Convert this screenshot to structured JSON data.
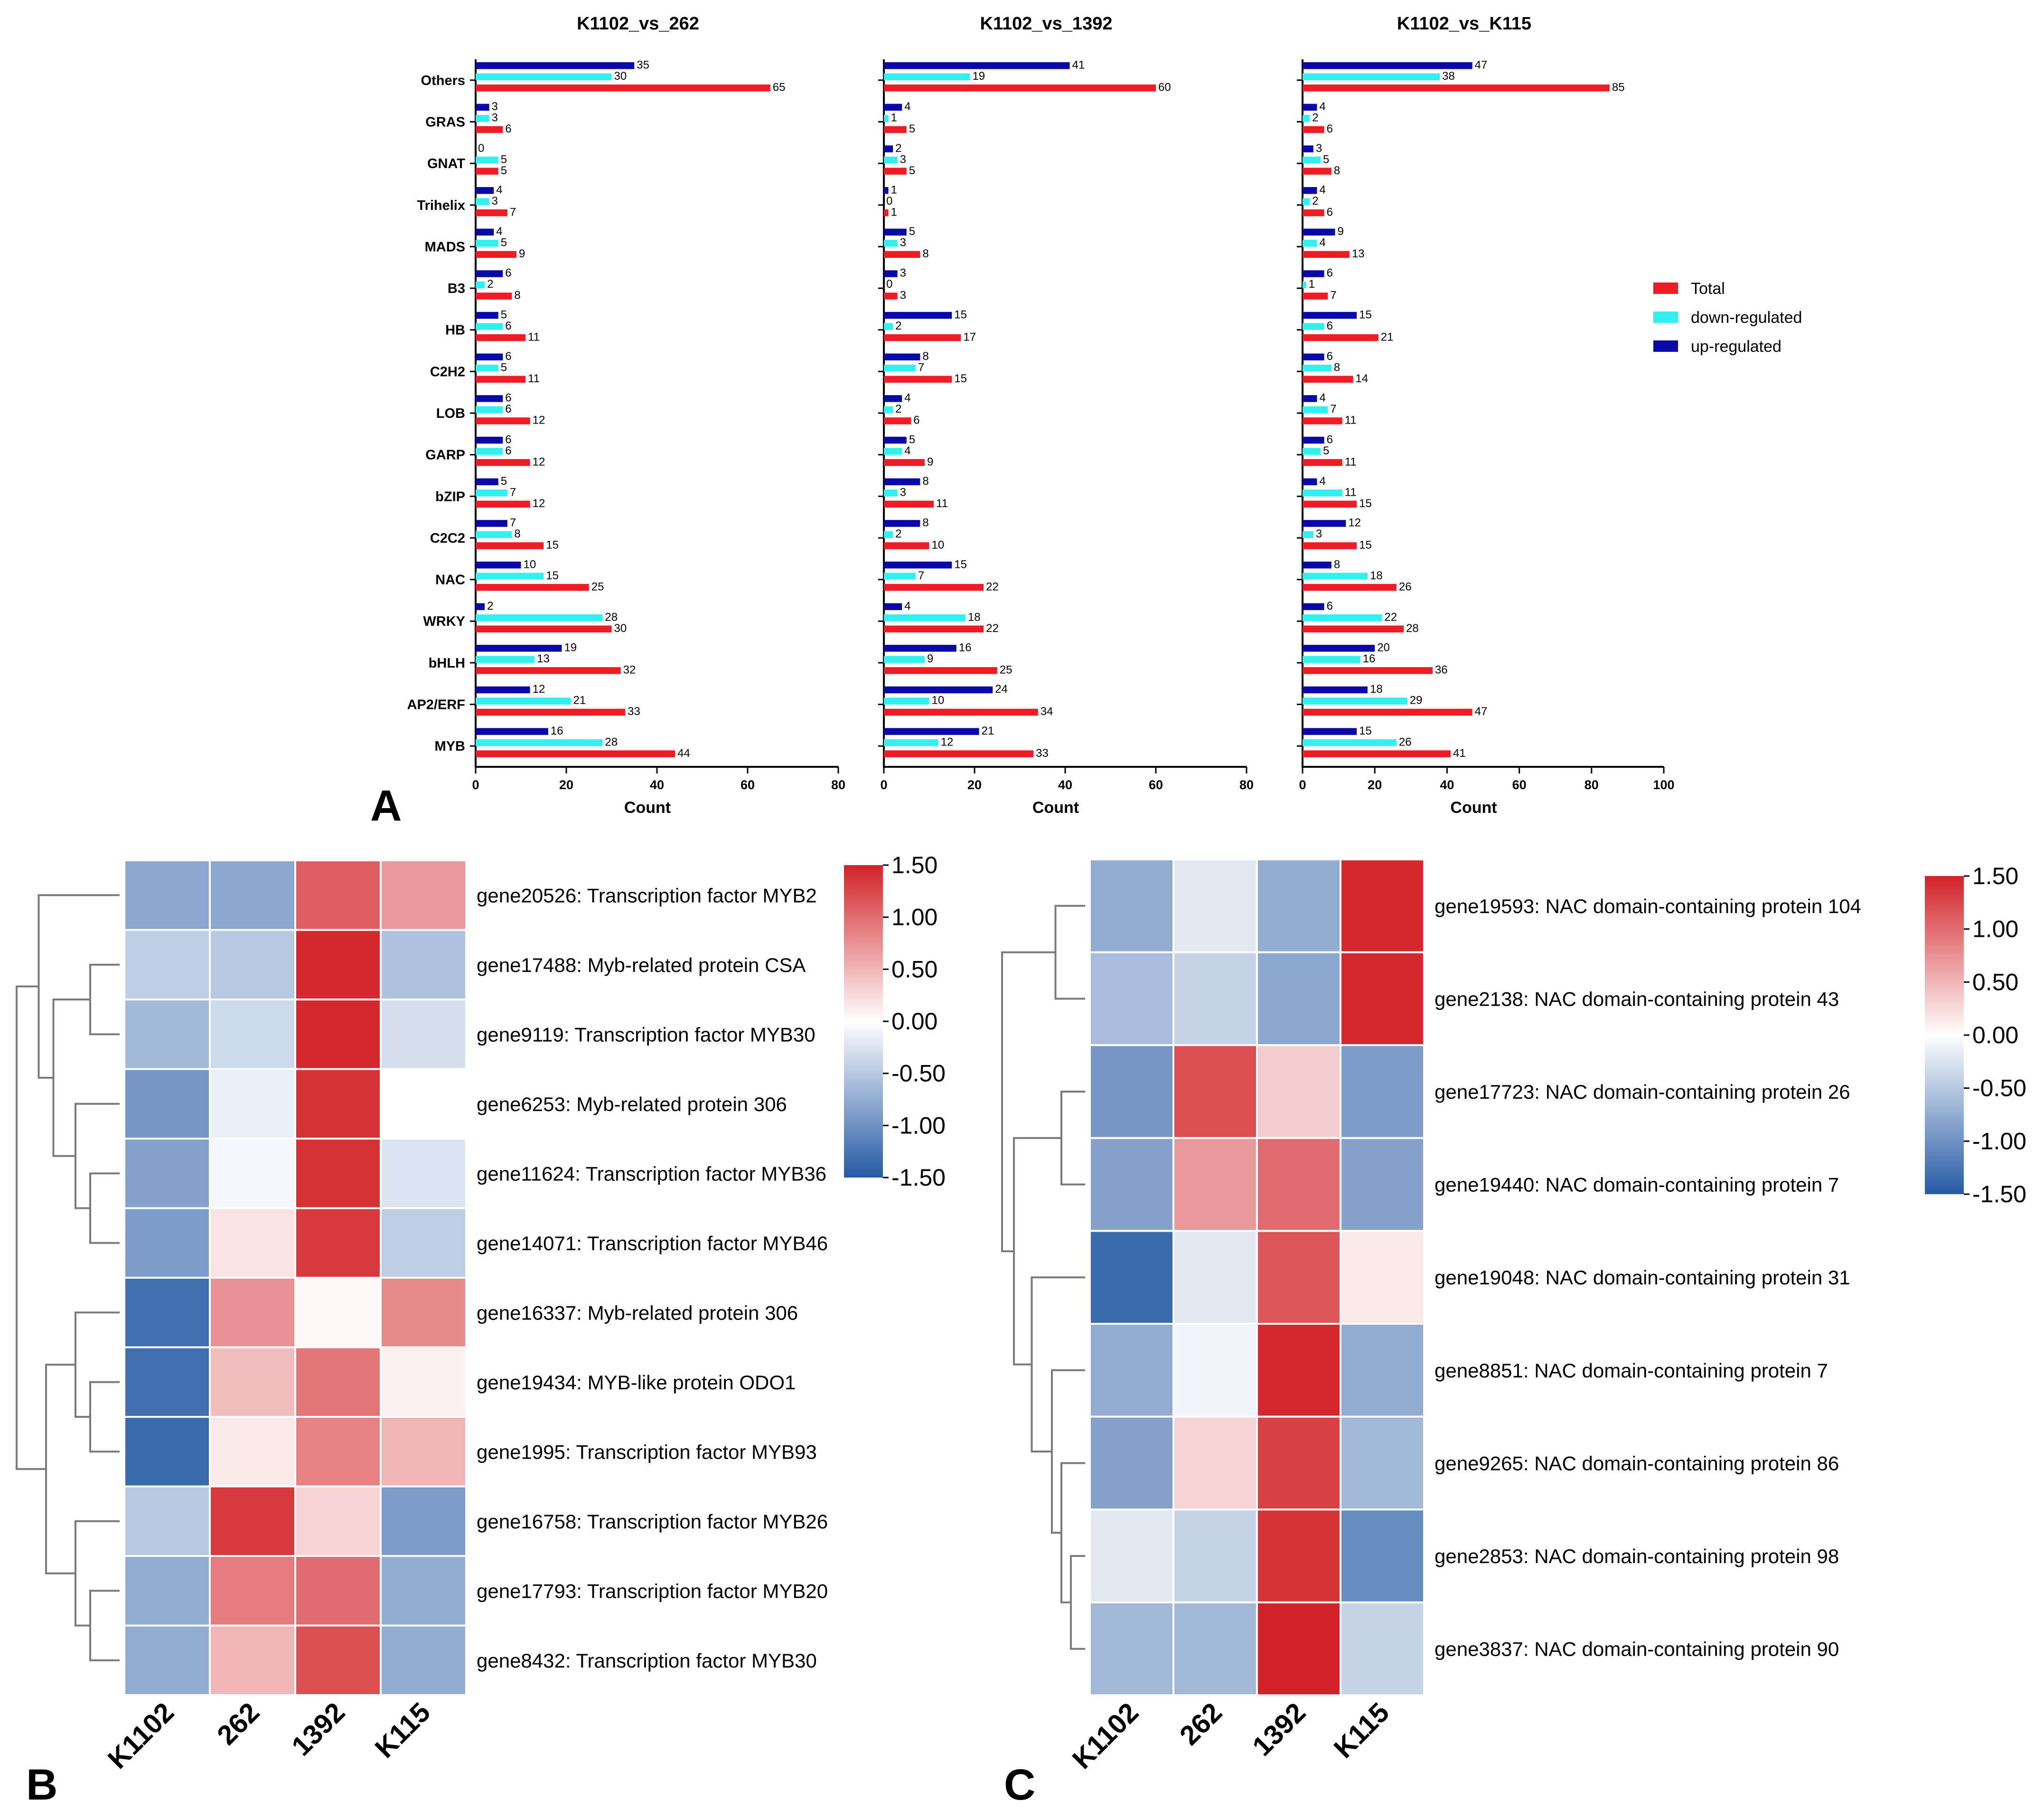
{
  "figure": {
    "panel_labels": [
      "A",
      "B",
      "C"
    ],
    "bar_axis_label": "Count",
    "legend": [
      {
        "label": "Total",
        "color": "#ee1c25"
      },
      {
        "label": "down-regulated",
        "color": "#33f0f0"
      },
      {
        "label": "up-regulated",
        "color": "#0a0aa8"
      }
    ]
  },
  "chart_data": [
    {
      "type": "bar",
      "orientation": "horizontal",
      "title": "K1102_vs_262",
      "xlabel": "Count",
      "xlim": [
        0,
        80
      ],
      "xticks": [
        "0",
        "20",
        "40",
        "60",
        "80"
      ],
      "categories": [
        "Others",
        "GRAS",
        "GNAT",
        "Trihelix",
        "MADS",
        "B3",
        "HB",
        "C2H2",
        "LOB",
        "GARP",
        "bZIP",
        "C2C2",
        "NAC",
        "WRKY",
        "bHLH",
        "AP2/ERF",
        "MYB"
      ],
      "series": [
        {
          "name": "up-regulated",
          "values": [
            35,
            3,
            0,
            4,
            4,
            6,
            5,
            6,
            6,
            6,
            5,
            7,
            10,
            2,
            19,
            12,
            16
          ]
        },
        {
          "name": "down-regulated",
          "values": [
            30,
            3,
            5,
            3,
            5,
            2,
            6,
            5,
            6,
            6,
            7,
            8,
            15,
            28,
            13,
            21,
            28
          ]
        },
        {
          "name": "Total",
          "values": [
            65,
            6,
            5,
            7,
            9,
            8,
            11,
            11,
            12,
            12,
            12,
            15,
            25,
            30,
            32,
            33,
            44
          ]
        }
      ]
    },
    {
      "type": "bar",
      "orientation": "horizontal",
      "title": "K1102_vs_1392",
      "xlabel": "Count",
      "xlim": [
        0,
        80
      ],
      "xticks": [
        "0",
        "20",
        "40",
        "60",
        "80"
      ],
      "categories": [
        "Others",
        "GRAS",
        "GNAT",
        "Trihelix",
        "MADS",
        "B3",
        "HB",
        "C2H2",
        "LOB",
        "GARP",
        "bZIP",
        "C2C2",
        "NAC",
        "WRKY",
        "bHLH",
        "AP2/ERF",
        "MYB"
      ],
      "series": [
        {
          "name": "up-regulated",
          "values": [
            41,
            4,
            2,
            1,
            5,
            3,
            15,
            8,
            4,
            5,
            8,
            8,
            15,
            4,
            16,
            24,
            21
          ]
        },
        {
          "name": "down-regulated",
          "values": [
            19,
            1,
            3,
            0,
            3,
            0,
            2,
            7,
            2,
            4,
            3,
            2,
            7,
            18,
            9,
            10,
            12
          ]
        },
        {
          "name": "Total",
          "values": [
            60,
            5,
            5,
            1,
            8,
            3,
            17,
            15,
            6,
            9,
            11,
            10,
            22,
            22,
            25,
            34,
            33
          ]
        }
      ]
    },
    {
      "type": "bar",
      "orientation": "horizontal",
      "title": "K1102_vs_K115",
      "xlabel": "Count",
      "xlim": [
        0,
        100
      ],
      "xticks": [
        "0",
        "20",
        "40",
        "60",
        "80",
        "100"
      ],
      "categories": [
        "Others",
        "GRAS",
        "GNAT",
        "Trihelix",
        "MADS",
        "B3",
        "HB",
        "C2H2",
        "LOB",
        "GARP",
        "bZIP",
        "C2C2",
        "NAC",
        "WRKY",
        "bHLH",
        "AP2/ERF",
        "MYB"
      ],
      "series": [
        {
          "name": "up-regulated",
          "values": [
            47,
            4,
            3,
            4,
            9,
            6,
            15,
            6,
            4,
            6,
            4,
            12,
            8,
            6,
            20,
            18,
            15
          ]
        },
        {
          "name": "down-regulated",
          "values": [
            38,
            2,
            5,
            2,
            4,
            1,
            6,
            8,
            7,
            5,
            11,
            3,
            18,
            22,
            16,
            29,
            26
          ]
        },
        {
          "name": "Total",
          "values": [
            85,
            6,
            8,
            6,
            13,
            7,
            21,
            14,
            11,
            11,
            15,
            15,
            26,
            28,
            36,
            47,
            41
          ]
        }
      ]
    },
    {
      "type": "heatmap",
      "panel": "B",
      "columns": [
        "K1102",
        "262",
        "1392",
        "K115"
      ],
      "rows": [
        "gene20526: Transcription factor MYB2",
        "gene17488: Myb-related protein CSA",
        "gene9119: Transcription factor MYB30",
        "gene6253: Myb-related protein 306",
        "gene11624: Transcription factor MYB36",
        "gene14071: Transcription factor MYB46",
        "gene16337: Myb-related protein 306",
        "gene19434: MYB-like protein ODO1",
        "gene1995: Transcription factor MYB93",
        "gene16758: Transcription factor MYB26",
        "gene17793: Transcription factor MYB20",
        "gene8432: Transcription factor MYB30"
      ],
      "values": [
        [
          -0.8,
          -0.8,
          1.1,
          0.7
        ],
        [
          -0.45,
          -0.5,
          1.45,
          -0.55
        ],
        [
          -0.65,
          -0.35,
          1.45,
          -0.3
        ],
        [
          -0.95,
          -0.15,
          1.4,
          0.0
        ],
        [
          -0.85,
          -0.08,
          1.4,
          -0.25
        ],
        [
          -0.9,
          0.2,
          1.35,
          -0.45
        ],
        [
          -1.3,
          0.75,
          0.05,
          0.8
        ],
        [
          -1.3,
          0.45,
          0.95,
          0.1
        ],
        [
          -1.35,
          0.15,
          0.85,
          0.5
        ],
        [
          -0.5,
          1.35,
          0.3,
          -0.9
        ],
        [
          -0.75,
          0.9,
          1.0,
          -0.75
        ],
        [
          -0.75,
          0.5,
          1.2,
          -0.75
        ]
      ],
      "colorbar": {
        "ticks": [
          "1.50",
          "1.00",
          "0.50",
          "0.00",
          "-0.50",
          "-1.00",
          "-1.50"
        ],
        "min": -1.5,
        "max": 1.5
      }
    },
    {
      "type": "heatmap",
      "panel": "C",
      "columns": [
        "K1102",
        "262",
        "1392",
        "K115"
      ],
      "rows": [
        "gene19593: NAC domain-containing protein 104",
        "gene2138: NAC domain-containing protein 43",
        "gene17723: NAC domain-containing protein 26",
        "gene19440: NAC domain-containing protein 7",
        "gene19048: NAC domain-containing protein 31",
        "gene8851: NAC domain-containing protein 7",
        "gene9265: NAC domain-containing protein 86",
        "gene2853: NAC domain-containing protein 98",
        "gene3837: NAC domain-containing protein 90"
      ],
      "values": [
        [
          -0.75,
          -0.2,
          -0.75,
          1.45
        ],
        [
          -0.6,
          -0.4,
          -0.8,
          1.45
        ],
        [
          -0.95,
          1.2,
          0.35,
          -0.9
        ],
        [
          -0.85,
          0.7,
          1.0,
          -0.85
        ],
        [
          -1.35,
          -0.2,
          1.15,
          0.15
        ],
        [
          -0.75,
          -0.1,
          1.45,
          -0.75
        ],
        [
          -0.85,
          0.3,
          1.3,
          -0.65
        ],
        [
          -0.2,
          -0.4,
          1.4,
          -1.05
        ],
        [
          -0.65,
          -0.65,
          1.5,
          -0.4
        ]
      ],
      "colorbar": {
        "ticks": [
          "1.50",
          "1.00",
          "0.50",
          "0.00",
          "-0.50",
          "-1.00",
          "-1.50"
        ],
        "min": -1.5,
        "max": 1.5
      }
    }
  ]
}
